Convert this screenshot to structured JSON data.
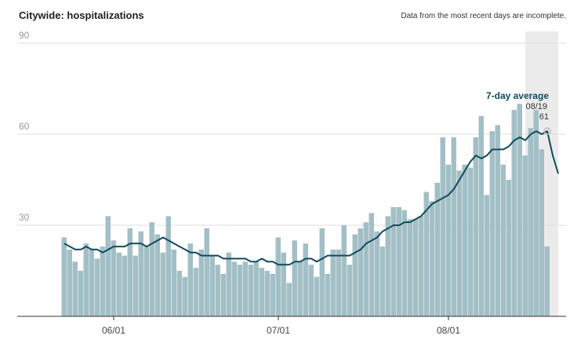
{
  "chart_data": {
    "type": "bar+line",
    "title": "Citywide: hospitalizations",
    "note": "Data from the most recent days are incomplete.",
    "categories": [
      null,
      null,
      null,
      null,
      null,
      null,
      null,
      null,
      null,
      "06/01",
      null,
      null,
      null,
      null,
      null,
      null,
      null,
      null,
      null,
      null,
      null,
      null,
      null,
      null,
      null,
      null,
      null,
      null,
      null,
      null,
      null,
      null,
      null,
      null,
      null,
      null,
      null,
      null,
      null,
      "07/01",
      null,
      null,
      null,
      null,
      null,
      null,
      null,
      null,
      null,
      null,
      null,
      null,
      null,
      null,
      null,
      null,
      null,
      null,
      null,
      null,
      null,
      null,
      null,
      null,
      null,
      null,
      null,
      null,
      null,
      null,
      "08/01",
      null,
      null,
      null,
      null,
      null,
      null,
      null,
      null,
      null,
      null,
      null,
      null,
      null,
      null,
      null,
      null,
      null,
      null,
      null,
      null
    ],
    "series": [
      {
        "type": "bar",
        "color": "#a3bfc6",
        "values": [
          26,
          22,
          18,
          15,
          24,
          22,
          19,
          23,
          33,
          25,
          21,
          20,
          29,
          20,
          28,
          23,
          31,
          27,
          21,
          33,
          22,
          15,
          13,
          24,
          16,
          22,
          29,
          20,
          17,
          14,
          21,
          18,
          17,
          18,
          17,
          18,
          16,
          15,
          14,
          26,
          21,
          11,
          25,
          18,
          24,
          17,
          13,
          29,
          14,
          22,
          22,
          30,
          17,
          27,
          29,
          31,
          34,
          28,
          23,
          33,
          36,
          36,
          35,
          32,
          32,
          33,
          41,
          38,
          44,
          59,
          50,
          59,
          48,
          50,
          49,
          59,
          66,
          40,
          61,
          63,
          50,
          45,
          68,
          70,
          53,
          62,
          68,
          55,
          23,
          null,
          null
        ]
      },
      {
        "type": "line",
        "name": "7-day average",
        "color": "#0f4c5c",
        "values": [
          24,
          23,
          22,
          22,
          23,
          22,
          22,
          21,
          22,
          23,
          23,
          23,
          24,
          24,
          24,
          23,
          24,
          25,
          26,
          25,
          24,
          23,
          22,
          21,
          21,
          20,
          20,
          20,
          20,
          19,
          19,
          19,
          19,
          19,
          18,
          18,
          19,
          18,
          18,
          17,
          17,
          17,
          18,
          18,
          19,
          19,
          18,
          19,
          20,
          20,
          20,
          20,
          20,
          21,
          22,
          24,
          25,
          26,
          28,
          29,
          30,
          30,
          31,
          31,
          32,
          33,
          35,
          37,
          38,
          39,
          40,
          42,
          45,
          48,
          51,
          53,
          52,
          53,
          55,
          55,
          55,
          56,
          58,
          59,
          58,
          60,
          61,
          60,
          61,
          53,
          47
        ]
      }
    ],
    "annotation": {
      "date": "08/19"
    },
    "ylim": [
      0,
      90
    ],
    "yticks": [
      30,
      60,
      90
    ],
    "grid": true
  }
}
